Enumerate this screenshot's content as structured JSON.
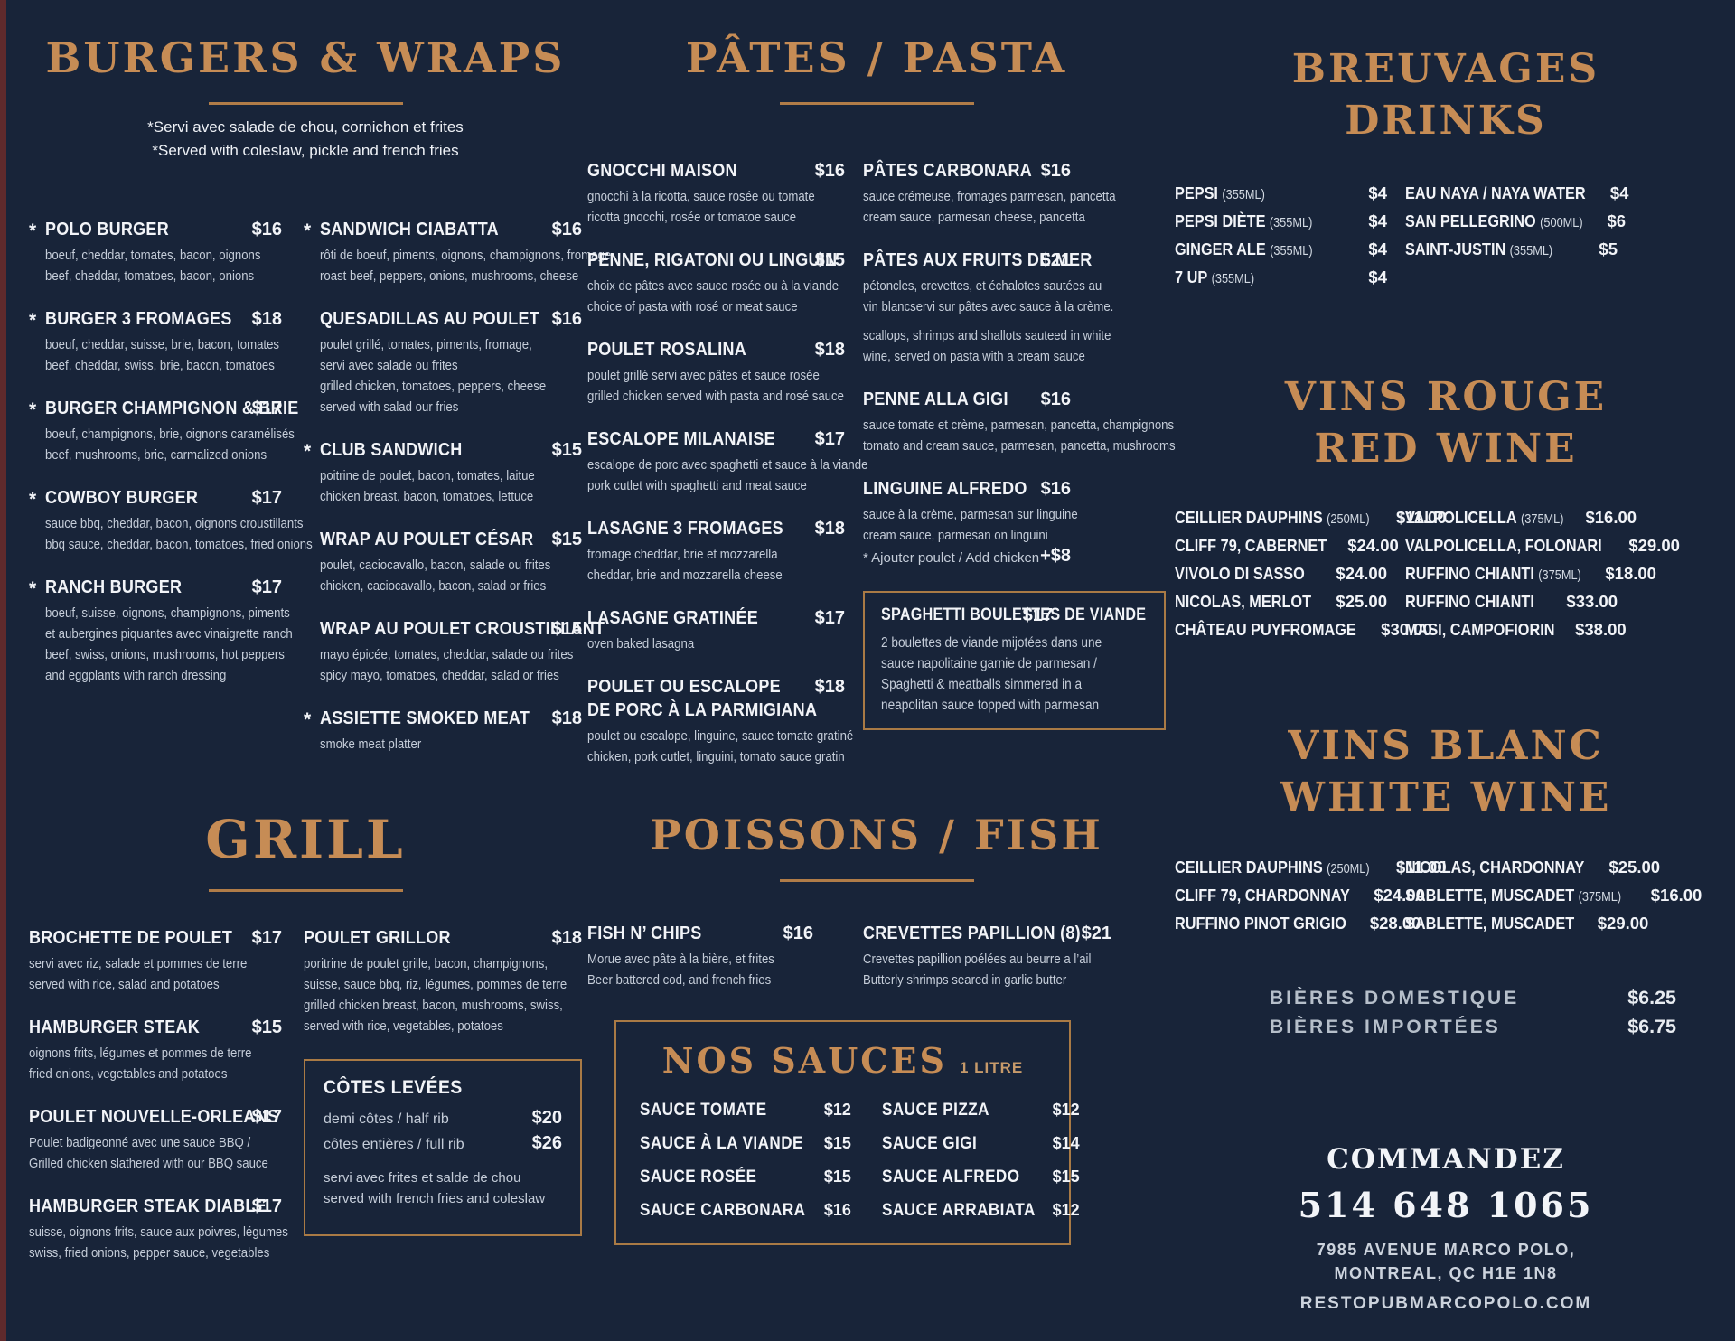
{
  "theme": {
    "background": "#182439",
    "accent_copper": "#c68c55",
    "rule_copper": "#b07c48",
    "box_border": "#a97a45",
    "edge_strip": "#5f2a2c",
    "text_white": "#f2f4f8",
    "text_muted": "#c5cdd9"
  },
  "burgers": {
    "title": "BURGERS & WRAPS",
    "note_fr": "*Servi avec salade de chou, cornichon et frites",
    "note_en": "*Served with coleslaw, pickle and french fries",
    "col1": [
      {
        "star": true,
        "name": "POLO BURGER",
        "price": "$16",
        "desc": [
          "boeuf, cheddar, tomates, bacon, oignons",
          "beef, cheddar, tomatoes, bacon, onions"
        ]
      },
      {
        "star": true,
        "name": "BURGER 3 FROMAGES",
        "price": "$18",
        "desc": [
          "boeuf, cheddar, suisse, brie, bacon, tomates",
          "beef, cheddar, swiss, brie, bacon, tomatoes"
        ]
      },
      {
        "star": true,
        "name": "BURGER CHAMPIGNON & BRIE",
        "price": "$17",
        "desc": [
          "boeuf, champignons, brie, oignons caramélisés",
          "beef, mushrooms, brie, carmalized onions"
        ]
      },
      {
        "star": true,
        "name": "COWBOY BURGER",
        "price": "$17",
        "desc": [
          "sauce bbq, cheddar, bacon, oignons croustillants",
          "bbq sauce, cheddar, bacon, tomatoes, fried onions"
        ]
      },
      {
        "star": true,
        "name": "RANCH BURGER",
        "price": "$17",
        "desc": [
          "boeuf, suisse, oignons, champignons, piments",
          "et aubergines piquantes avec vinaigrette ranch",
          "beef, swiss, onions, mushrooms, hot peppers",
          "and eggplants with ranch dressing"
        ]
      }
    ],
    "col2": [
      {
        "star": true,
        "name": "SANDWICH CIABATTA",
        "price": "$16",
        "desc": [
          "rôti de boeuf, piments, oignons, champignons, fromage",
          "roast beef, peppers, onions, mushrooms, cheese"
        ]
      },
      {
        "star": false,
        "name": "QUESADILLAS AU POULET",
        "price": "$16",
        "desc": [
          "poulet grillé, tomates, piments, fromage,",
          "servi avec salade ou frites",
          "grilled chicken, tomatoes, peppers, cheese",
          "served with salad our fries"
        ]
      },
      {
        "star": true,
        "name": "CLUB SANDWICH",
        "price": "$15",
        "desc": [
          "poitrine de poulet, bacon, tomates, laitue",
          "chicken breast, bacon, tomatoes, lettuce"
        ]
      },
      {
        "star": false,
        "name": "WRAP AU POULET CÉSAR",
        "price": "$15",
        "desc": [
          "poulet, caciocavallo, bacon, salade ou frites",
          "chicken, caciocavallo, bacon, salad or fries"
        ]
      },
      {
        "star": false,
        "name": "WRAP AU POULET CROUSTILLANT",
        "price": "$15",
        "desc": [
          "mayo épicée, tomates, cheddar, salade ou frites",
          "spicy mayo, tomatoes, cheddar, salad or fries"
        ]
      },
      {
        "star": true,
        "name": "ASSIETTE SMOKED MEAT",
        "price": "$18",
        "desc": [
          "smoke meat platter"
        ]
      }
    ]
  },
  "grill": {
    "title": "GRILL",
    "col1": [
      {
        "name": "BROCHETTE DE POULET",
        "price": "$17",
        "desc": [
          "servi avec riz, salade et pommes de terre",
          "served with rice, salad and potatoes"
        ]
      },
      {
        "name": "HAMBURGER STEAK",
        "price": "$15",
        "desc": [
          "oignons frits, légumes et pommes de terre",
          "fried onions, vegetables and potatoes"
        ]
      },
      {
        "name": "POULET NOUVELLE-ORLEANS",
        "price": "$17",
        "desc": [
          "Poulet badigeonné avec une sauce BBQ /",
          "Grilled chicken slathered with our BBQ sauce"
        ]
      },
      {
        "name": "HAMBURGER STEAK DIABLE",
        "price": "$17",
        "desc": [
          "suisse, oignons frits, sauce aux poivres, légumes",
          "swiss, fried onions, pepper sauce, vegetables"
        ]
      }
    ],
    "col2": [
      {
        "name": "POULET GRILLOR",
        "price": "$18",
        "desc": [
          "poritrine de poulet grille, bacon, champignons,",
          "suisse, sauce bbq, riz, légumes, pommes de terre",
          "grilled chicken breast, bacon, mushrooms, swiss,",
          "served with rice, vegetables, potatoes"
        ]
      }
    ],
    "ribs": {
      "title": "CÔTES LEVÉES",
      "rows": [
        {
          "label": "demi côtes / half rib",
          "price": "$20"
        },
        {
          "label": "côtes entières / full rib",
          "price": "$26"
        }
      ],
      "notes": [
        "servi avec frites et salde de chou",
        "served with french fries and coleslaw"
      ]
    }
  },
  "pasta": {
    "title": "PÂTES / PASTA",
    "col1": [
      {
        "name": "GNOCCHI MAISON",
        "price": "$16",
        "desc": [
          "gnocchi  à la ricotta, sauce rosée ou tomate",
          "ricotta gnocchi, rosée or tomatoe sauce"
        ]
      },
      {
        "name": "PENNE, RIGATONI OU LINGUIN",
        "price": "$15",
        "desc": [
          "choix de pâtes avec sauce rosée ou à la viande",
          "choice of pasta with rosé or meat sauce"
        ]
      },
      {
        "name": "POULET ROSALINA",
        "price": "$18",
        "desc": [
          "poulet grillé servi avec pâtes et sauce rosée",
          "grilled chicken served with pasta and rosé sauce"
        ]
      },
      {
        "name": "ESCALOPE MILANAISE",
        "price": "$17",
        "desc": [
          "escalope de porc avec spaghetti et sauce  à la viande",
          "pork cutlet with spaghetti and meat sauce"
        ]
      },
      {
        "name": "LASAGNE 3 FROMAGES",
        "price": "$18",
        "desc": [
          "fromage cheddar, brie et mozzarella",
          "cheddar, brie and mozzarella cheese"
        ]
      },
      {
        "name": "LASAGNE GRATINÉE",
        "price": "$17",
        "desc": [
          "oven baked lasagna"
        ]
      },
      {
        "name": "POULET OU ESCALOPE",
        "name2": "DE PORC À LA PARMIGIANA",
        "price": "$18",
        "desc": [
          "poulet ou escalope, linguine, sauce tomate gratiné",
          "chicken, pork cutlet, linguini, tomato sauce gratin"
        ]
      }
    ],
    "col2": [
      {
        "name": "PÂTES CARBONARA",
        "price": "$16",
        "desc": [
          "sauce crémeuse, fromages parmesan, pancetta",
          "cream sauce, parmesan cheese, pancetta"
        ]
      },
      {
        "name": "PÂTES AUX FRUITS DE MER",
        "price": "$21",
        "desc": [
          "pétoncles, crevettes, et échalotes sautées au",
          "vin blancservi sur pâtes avec sauce à la crème."
        ],
        "desc2": [
          "scallops, shrimps and shallots sauteed in white",
          "wine, served on pasta with a cream sauce"
        ]
      },
      {
        "name": "PENNE ALLA GIGI",
        "price": "$16",
        "desc": [
          "sauce tomate et crème, parmesan, pancetta, champignons",
          "tomato and cream sauce, parmesan, pancetta, mushrooms"
        ]
      },
      {
        "name": "LINGUINE ALFREDO",
        "price": "$16",
        "desc": [
          "sauce à la crème, parmesan sur linguine",
          "cream sauce, parmesan on linguini"
        ],
        "addon": {
          "label": "* Ajouter poulet / Add chicken",
          "price": "+$8"
        }
      }
    ],
    "special": [
      {
        "name": "SPAGHETTI BOULETTES DE VIANDE",
        "price": "$17",
        "desc": [
          "2 boulettes de viande mijotées dans une",
          "sauce napolitaine garnie de parmesan /",
          "Spaghetti & meatballs simmered in a",
          "neapolitan sauce topped with parmesan"
        ]
      }
    ]
  },
  "fish": {
    "title": "POISSONS / FISH",
    "col1": [
      {
        "name": "FISH N’ CHIPS",
        "price": "$16",
        "desc": [
          "Morue avec pâte à la bière, et frites",
          "Beer battered cod, and french fries"
        ]
      }
    ],
    "col2": [
      {
        "name": "CREVETTES PAPILLION (8)",
        "price": "$21",
        "desc": [
          "Crevettes papillion poélées au beurre a l’ail",
          "Butterly shrimps seared in garlic butter"
        ]
      }
    ]
  },
  "sauces": {
    "title": "NOS SAUCES",
    "unit": "1 LITRE",
    "col1": [
      {
        "label": "SAUCE TOMATE",
        "price": "$12"
      },
      {
        "label": "SAUCE À LA VIANDE",
        "price": "$15"
      },
      {
        "label": "SAUCE ROSÉE",
        "price": "$15"
      },
      {
        "label": "SAUCE CARBONARA",
        "price": "$16"
      }
    ],
    "col2": [
      {
        "label": "SAUCE PIZZA",
        "price": "$12"
      },
      {
        "label": "SAUCE GIGI",
        "price": "$14"
      },
      {
        "label": "SAUCE ALFREDO",
        "price": "$15"
      },
      {
        "label": "SAUCE ARRABIATA",
        "price": "$12"
      }
    ]
  },
  "drinks": {
    "title_fr": "BREUVAGES",
    "title_en": "DRINKS",
    "col1": [
      {
        "name": "PEPSI",
        "size": "(355ML)",
        "price": "$4"
      },
      {
        "name": "PEPSI DIÈTE",
        "size": "(355ML)",
        "price": "$4"
      },
      {
        "name": "GINGER ALE",
        "size": "(355ML)",
        "price": "$4"
      },
      {
        "name": "7 UP",
        "size": "(355ML)",
        "price": "$4"
      }
    ],
    "col2": [
      {
        "name": "EAU NAYA / NAYA WATER",
        "size": "",
        "price": "$4"
      },
      {
        "name": "SAN PELLEGRINO",
        "size": "(500ML)",
        "price": "$6"
      },
      {
        "name": "SAINT-JUSTIN",
        "size": "(355ML)",
        "price": "$5"
      }
    ]
  },
  "red_wine": {
    "title_fr": "VINS ROUGE",
    "title_en": "RED WINE",
    "col1": [
      {
        "name": "CEILLIER DAUPHINS",
        "size": "(250ML)",
        "price": "$11.00"
      },
      {
        "name": "CLIFF 79, CABERNET",
        "size": "",
        "price": "$24.00"
      },
      {
        "name": "VIVOLO DI SASSO",
        "size": "",
        "price": "$24.00"
      },
      {
        "name": "NICOLAS, MERLOT",
        "size": "",
        "price": "$25.00"
      },
      {
        "name": "CHÂTEAU PUYFROMAGE",
        "size": "",
        "price": "$30.00"
      }
    ],
    "col2": [
      {
        "name": "VALPOLICELLA",
        "size": "(375ML)",
        "price": "$16.00"
      },
      {
        "name": "VALPOLICELLA, FOLONARI",
        "size": "",
        "price": "$29.00"
      },
      {
        "name": "RUFFINO CHIANTI",
        "size": "(375ML)",
        "price": "$18.00"
      },
      {
        "name": "RUFFINO CHIANTI",
        "size": "",
        "price": "$33.00"
      },
      {
        "name": "MASI, CAMPOFIORIN",
        "size": "",
        "price": "$38.00"
      }
    ]
  },
  "white_wine": {
    "title_fr": "VINS BLANC",
    "title_en": "WHITE WINE",
    "col1": [
      {
        "name": "CEILLIER DAUPHINS",
        "size": "(250ML)",
        "price": "$11.00"
      },
      {
        "name": "CLIFF 79, CHARDONNAY",
        "size": "",
        "price": "$24.00"
      },
      {
        "name": "RUFFINO PINOT GRIGIO",
        "size": "",
        "price": "$28.00"
      }
    ],
    "col2": [
      {
        "name": "NICOLAS, CHARDONNAY",
        "size": "",
        "price": "$25.00"
      },
      {
        "name": "SABLETTE, MUSCADET",
        "size": "(375ML)",
        "price": "$16.00"
      },
      {
        "name": "SABLETTE, MUSCADET",
        "size": "",
        "price": "$29.00"
      }
    ]
  },
  "beers": {
    "rows": [
      {
        "label": "BIÈRES DOMESTIQUE",
        "price": "$6.25"
      },
      {
        "label": "BIÈRES IMPORTÉES",
        "price": "$6.75"
      }
    ]
  },
  "footer": {
    "order_label": "COMMANDEZ",
    "phone": "514 648 1065",
    "address_line1": "7985 AVENUE MARCO POLO,",
    "address_line2": "MONTREAL, QC H1E 1N8",
    "website": "RESTOPUBMARCOPOLO.COM"
  }
}
